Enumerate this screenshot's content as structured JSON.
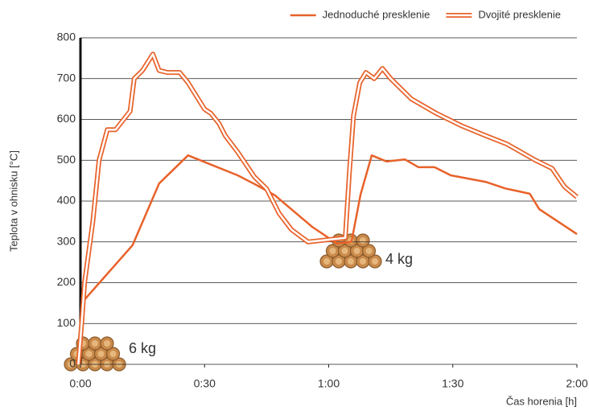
{
  "chart_data": {
    "type": "line",
    "x_label": "Čas horenia [h]",
    "y_label": "Teplota v ohnisku [°C]",
    "xlim": [
      0,
      120
    ],
    "ylim": [
      0,
      800
    ],
    "xticks": [
      {
        "value": 0,
        "label": "0:00"
      },
      {
        "value": 30,
        "label": "0:30"
      },
      {
        "value": 60,
        "label": "1:00"
      },
      {
        "value": 90,
        "label": "1:30"
      },
      {
        "value": 120,
        "label": "2:00"
      }
    ],
    "yticks": [
      0,
      100,
      200,
      300,
      400,
      500,
      600,
      700,
      800
    ],
    "grid": true,
    "legend": "top-right",
    "annotations": [
      "6 kg",
      "4 kg"
    ],
    "series": [
      {
        "name": "Jednoduché presklenie",
        "color": "#e8622a",
        "line_style": "single",
        "x": [
          0.6,
          12.6,
          19,
          26,
          38,
          42.4,
          47,
          56,
          62,
          65.5,
          67.7,
          70.4,
          74,
          78.4,
          81.7,
          85.6,
          89.5,
          97.9,
          102.7,
          108.6,
          110.9,
          120
        ],
        "values": [
          154,
          292,
          443,
          512,
          463,
          440,
          414,
          337,
          296,
          300,
          416,
          512,
          497,
          502,
          483,
          483,
          463,
          447,
          431,
          418,
          380,
          319
        ]
      },
      {
        "name": "Dvojité presklenie",
        "color": "#e8622a",
        "line_style": "double",
        "x": [
          -0.5,
          0.3,
          1,
          3,
          4.5,
          6.5,
          8.5,
          12,
          13,
          15,
          17.5,
          19,
          21,
          24,
          26,
          30,
          31.5,
          33.5,
          35,
          38,
          42,
          45,
          48,
          51,
          55,
          64,
          65,
          66,
          67.5,
          69,
          71,
          73,
          75,
          80,
          86,
          92,
          98,
          103,
          110,
          114,
          117,
          120
        ],
        "values": [
          0,
          100,
          200,
          350,
          500,
          575,
          575,
          620,
          700,
          720,
          760,
          720,
          715,
          715,
          690,
          625,
          615,
          590,
          560,
          520,
          460,
          430,
          370,
          330,
          300,
          310,
          470,
          610,
          690,
          715,
          700,
          725,
          700,
          650,
          615,
          585,
          560,
          540,
          500,
          480,
          435,
          410
        ]
      }
    ]
  }
}
